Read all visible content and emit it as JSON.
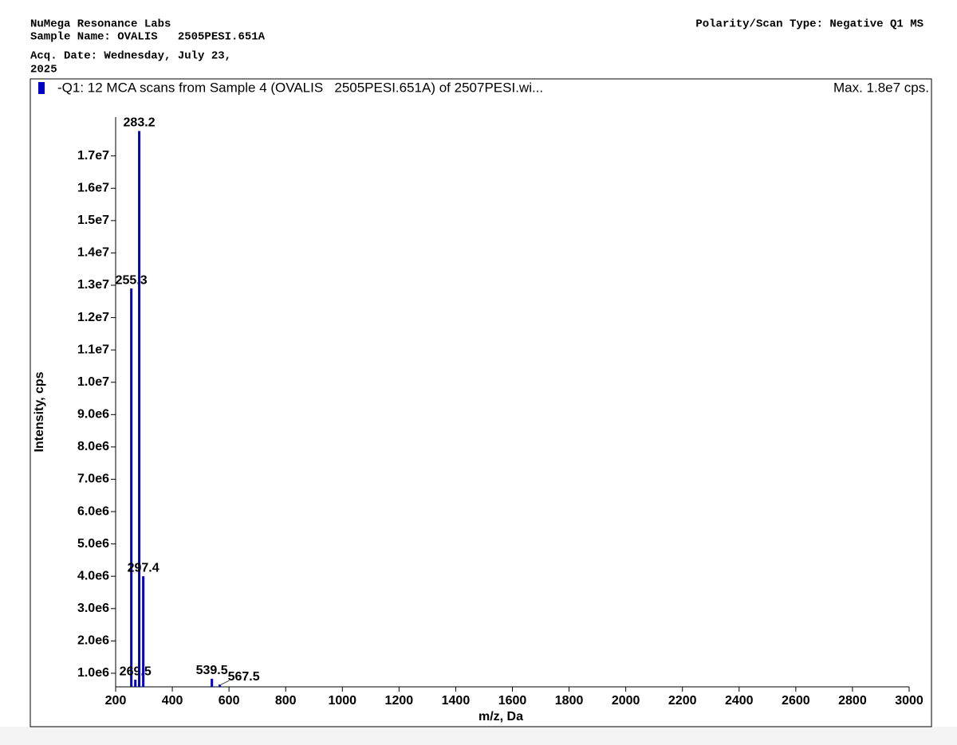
{
  "header": {
    "lab": "NuMega Resonance Labs",
    "sample_name": "Sample Name: OVALIS   2505PESI.651A",
    "acq_date": "Acq. Date: Wednesday, July 23,",
    "acq_year": "2025",
    "polarity": "Polarity/Scan Type: Negative Q1 MS"
  },
  "chart_data": {
    "type": "bar",
    "series": [
      {
        "name": "-Q1: 12 MCA scans from Sample 4 (OVALIS   2505PESI.651A) of 2507PESI.wi...",
        "color": "#0000c8",
        "values": [
          12900000,
          800000,
          17770000,
          4000000,
          830000,
          650000
        ]
      }
    ],
    "x": [
      255.3,
      269.5,
      283.2,
      297.4,
      539.5,
      567.5
    ],
    "max_label": "Max. 1.8e7 cps.",
    "xlabel": "m/z, Da",
    "ylabel": "Intensity, cps",
    "xlim": [
      200,
      3000
    ],
    "ylim": [
      580000,
      18200000
    ],
    "xticks": [
      200,
      400,
      600,
      800,
      1000,
      1200,
      1400,
      1600,
      1800,
      2000,
      2200,
      2400,
      2600,
      2800,
      3000
    ],
    "yticks": [
      {
        "value": 1000000,
        "label": "1.0e6"
      },
      {
        "value": 2000000,
        "label": "2.0e6"
      },
      {
        "value": 3000000,
        "label": "3.0e6"
      },
      {
        "value": 4000000,
        "label": "4.0e6"
      },
      {
        "value": 5000000,
        "label": "5.0e6"
      },
      {
        "value": 6000000,
        "label": "6.0e6"
      },
      {
        "value": 7000000,
        "label": "7.0e6"
      },
      {
        "value": 8000000,
        "label": "8.0e6"
      },
      {
        "value": 9000000,
        "label": "9.0e6"
      },
      {
        "value": 10000000,
        "label": "1.0e7"
      },
      {
        "value": 11000000,
        "label": "1.1e7"
      },
      {
        "value": 12000000,
        "label": "1.2e7"
      },
      {
        "value": 13000000,
        "label": "1.3e7"
      },
      {
        "value": 14000000,
        "label": "1.4e7"
      },
      {
        "value": 15000000,
        "label": "1.5e7"
      },
      {
        "value": 16000000,
        "label": "1.6e7"
      },
      {
        "value": 17000000,
        "label": "1.7e7"
      }
    ]
  }
}
